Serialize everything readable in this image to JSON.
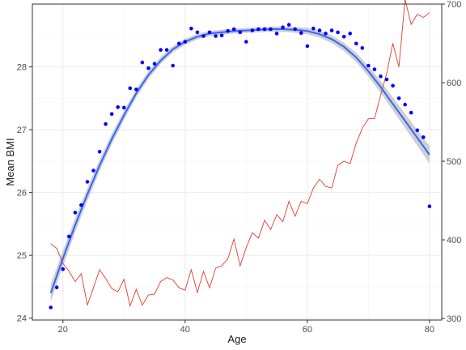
{
  "chart_data": {
    "type": "scatter",
    "title": "",
    "xlabel": "Age",
    "ylabel": "Mean BMI",
    "ylabel_right": "",
    "xlim": [
      15,
      82
    ],
    "ylim": [
      23.97,
      29.0
    ],
    "ylim_right": [
      298,
      700
    ],
    "xticks": [
      20,
      40,
      60,
      80
    ],
    "yticks": [
      24,
      25,
      26,
      27,
      28
    ],
    "yticks_right": [
      300,
      400,
      500,
      600,
      700
    ],
    "grid": true,
    "legend": "none",
    "colors": {
      "points": "#0000ff",
      "smooth": "#3366ff",
      "band": "#bfbfbf",
      "count_line": "#e8392d",
      "grid": "#ebebeb",
      "panel_border": "#333333"
    },
    "series": [
      {
        "kind": "points",
        "axis": "left",
        "x": [
          18,
          19,
          20,
          21,
          22,
          23,
          24,
          25,
          26,
          27,
          28,
          29,
          30,
          31,
          32,
          33,
          34,
          35,
          36,
          37,
          38,
          39,
          40,
          41,
          42,
          43,
          44,
          45,
          46,
          47,
          48,
          49,
          50,
          51,
          52,
          53,
          54,
          55,
          56,
          57,
          58,
          59,
          60,
          61,
          62,
          63,
          64,
          65,
          66,
          67,
          68,
          69,
          70,
          71,
          72,
          73,
          74,
          75,
          76,
          77,
          78,
          79,
          80
        ],
        "y": [
          24.17,
          24.49,
          24.78,
          25.3,
          25.68,
          25.8,
          26.17,
          26.35,
          26.65,
          27.09,
          27.25,
          27.36,
          27.35,
          27.66,
          27.64,
          28.07,
          27.98,
          28.05,
          28.27,
          28.27,
          28.02,
          28.37,
          28.4,
          28.61,
          28.55,
          28.49,
          28.55,
          28.49,
          28.5,
          28.57,
          28.6,
          28.55,
          28.4,
          28.58,
          28.6,
          28.6,
          28.6,
          28.53,
          28.63,
          28.67,
          28.6,
          28.54,
          28.33,
          28.61,
          28.58,
          28.53,
          28.58,
          28.55,
          28.48,
          28.53,
          28.37,
          28.3,
          28.02,
          27.96,
          27.85,
          27.8,
          27.7,
          27.5,
          27.4,
          27.27,
          26.99,
          26.88,
          25.78
        ]
      },
      {
        "kind": "smooth",
        "axis": "left",
        "x": [
          18,
          20,
          22,
          24,
          26,
          28,
          30,
          32,
          34,
          36,
          38,
          40,
          42,
          44,
          46,
          48,
          50,
          52,
          54,
          56,
          58,
          60,
          62,
          64,
          66,
          68,
          70,
          72,
          74,
          76,
          78,
          80
        ],
        "y": [
          24.4,
          24.95,
          25.48,
          25.97,
          26.43,
          26.85,
          27.23,
          27.58,
          27.87,
          28.1,
          28.28,
          28.4,
          28.48,
          28.53,
          28.55,
          28.57,
          28.58,
          28.59,
          28.6,
          28.6,
          28.59,
          28.57,
          28.52,
          28.44,
          28.32,
          28.15,
          27.93,
          27.68,
          27.41,
          27.14,
          26.87,
          26.6
        ]
      },
      {
        "kind": "line",
        "axis": "right",
        "x": [
          18,
          19,
          20,
          21,
          22,
          23,
          24,
          25,
          26,
          27,
          28,
          29,
          30,
          31,
          32,
          33,
          34,
          35,
          36,
          37,
          38,
          39,
          40,
          41,
          42,
          43,
          44,
          45,
          46,
          47,
          48,
          49,
          50,
          51,
          52,
          53,
          54,
          55,
          56,
          57,
          58,
          59,
          60,
          61,
          62,
          63,
          64,
          65,
          66,
          67,
          68,
          69,
          70,
          71,
          72,
          73,
          74,
          75,
          76,
          77,
          78,
          79,
          80
        ],
        "y": [
          395,
          389,
          370,
          360,
          347,
          357,
          317,
          339,
          362,
          351,
          338,
          334,
          350,
          316,
          337,
          317,
          330,
          331,
          347,
          352,
          349,
          339,
          336,
          362,
          333,
          360,
          339,
          364,
          367,
          376,
          401,
          367,
          390,
          409,
          402,
          425,
          413,
          432,
          423,
          449,
          430,
          449,
          446,
          466,
          477,
          468,
          466,
          495,
          500,
          497,
          523,
          542,
          554,
          554,
          584,
          612,
          650,
          620,
          706,
          674,
          687,
          683,
          689
        ]
      }
    ]
  }
}
